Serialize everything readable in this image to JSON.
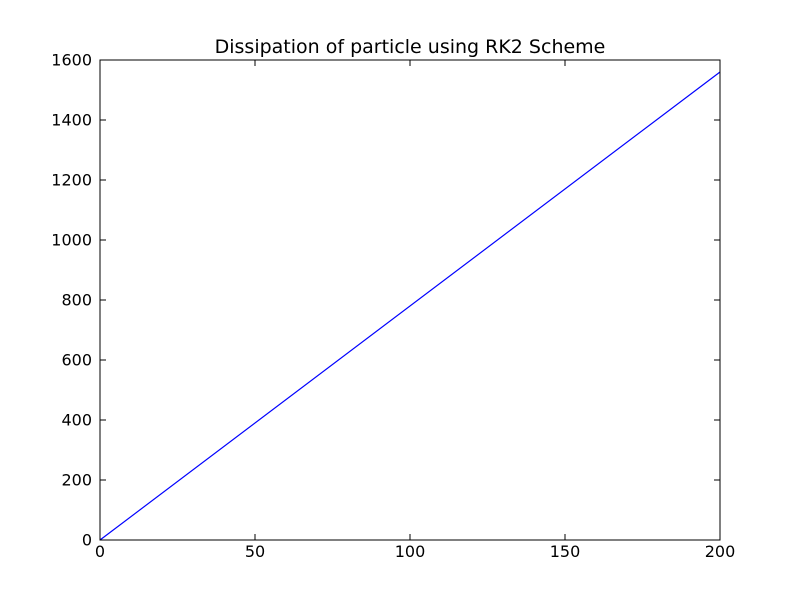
{
  "chart_data": {
    "type": "line",
    "title": "Dissipation of particle using RK2 Scheme",
    "xlabel": "",
    "ylabel": "",
    "xlim": [
      0,
      200
    ],
    "ylim": [
      0,
      1600
    ],
    "xticks": [
      0,
      50,
      100,
      150,
      200
    ],
    "yticks": [
      0,
      200,
      400,
      600,
      800,
      1000,
      1200,
      1400,
      1600
    ],
    "grid": false,
    "series": [
      {
        "color": "#0000ff",
        "x": [
          0,
          200
        ],
        "y": [
          0,
          1560
        ]
      }
    ]
  }
}
